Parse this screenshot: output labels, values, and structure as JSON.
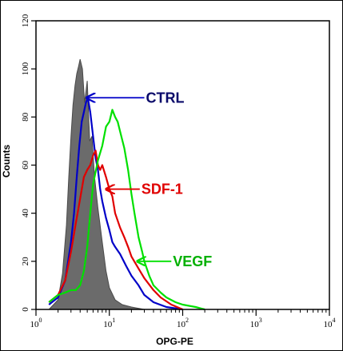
{
  "chart_data": {
    "type": "line",
    "xlabel": "OPG-PE",
    "ylabel": "Counts",
    "x_scale": "log",
    "xlim": [
      1,
      10000
    ],
    "ylim": [
      0,
      120
    ],
    "x_ticks": [
      1,
      10,
      100,
      1000,
      10000
    ],
    "x_tick_labels": [
      {
        "base": "10",
        "exp": "0"
      },
      {
        "base": "10",
        "exp": "1"
      },
      {
        "base": "10",
        "exp": "2"
      },
      {
        "base": "10",
        "exp": "3"
      },
      {
        "base": "10",
        "exp": "4"
      }
    ],
    "y_ticks": [
      0,
      20,
      40,
      60,
      80,
      100,
      120
    ],
    "y_tick_labels": [
      "0",
      "20",
      "40",
      "60",
      "80",
      "100",
      "120"
    ],
    "grid": false,
    "series": [
      {
        "name": "",
        "style": "filled",
        "color": "#6b6b6b",
        "x": [
          1.5,
          2,
          2.3,
          2.6,
          2.8,
          3.0,
          3.2,
          3.4,
          3.6,
          3.8,
          4.0,
          4.3,
          4.6,
          5.0,
          5.4,
          5.8,
          6.3,
          7,
          8,
          9,
          10,
          12,
          15,
          20,
          30,
          60
        ],
        "y": [
          0,
          4,
          15,
          35,
          55,
          72,
          85,
          93,
          98,
          101,
          104,
          100,
          86,
          95,
          70,
          72,
          55,
          42,
          28,
          16,
          9,
          4,
          2,
          1,
          0,
          0
        ]
      },
      {
        "name": "CTRL",
        "color": "#0000c8",
        "x": [
          1.5,
          2,
          2.5,
          3,
          3.3,
          3.6,
          3.9,
          4.2,
          4.5,
          4.8,
          5.1,
          5.5,
          6,
          6.5,
          7,
          7.5,
          8,
          9,
          10,
          11,
          12,
          14,
          17,
          20,
          25,
          30,
          40,
          60,
          100
        ],
        "y": [
          2,
          5,
          12,
          28,
          40,
          55,
          68,
          78,
          82,
          86,
          88,
          82,
          72,
          63,
          58,
          50,
          45,
          38,
          33,
          28,
          26,
          23,
          18,
          14,
          10,
          6,
          3,
          1,
          0
        ]
      },
      {
        "name": "SDF-1",
        "color": "#e00000",
        "x": [
          1.5,
          2,
          2.5,
          3,
          3.5,
          4,
          4.5,
          5,
          5.5,
          6,
          6.5,
          7,
          7.5,
          8,
          9,
          10,
          11,
          12,
          14,
          16,
          18,
          20,
          25,
          30,
          40,
          50,
          70,
          100
        ],
        "y": [
          3,
          6,
          12,
          24,
          36,
          46,
          55,
          58,
          60,
          64,
          66,
          60,
          58,
          60,
          55,
          50,
          47,
          40,
          34,
          30,
          26,
          22,
          17,
          13,
          8,
          5,
          2,
          0
        ]
      },
      {
        "name": "VEGF",
        "color": "#00e000",
        "x": [
          1.5,
          2,
          2.5,
          3,
          3.5,
          4,
          4.5,
          5,
          5.5,
          6,
          7,
          8,
          9,
          10,
          11,
          12,
          13,
          14,
          16,
          18,
          20,
          22,
          25,
          28,
          30,
          35,
          40,
          50,
          60,
          80,
          100,
          150,
          200
        ],
        "y": [
          3,
          6,
          7,
          8,
          8,
          10,
          16,
          26,
          40,
          52,
          62,
          68,
          76,
          78,
          83,
          80,
          78,
          74,
          67,
          58,
          48,
          40,
          30,
          24,
          20,
          14,
          10,
          7,
          5,
          3,
          2,
          1,
          0
        ]
      }
    ],
    "annotations": [
      {
        "text": "CTRL",
        "color": "#0a0a6a",
        "arrow_color": "#0000c8",
        "x_from": 30,
        "y_from": 88,
        "x_to": 4.9,
        "y_to": 88
      },
      {
        "text": "SDF-1",
        "color": "#e00000",
        "arrow_color": "#e00000",
        "x_from": 26,
        "y_from": 50,
        "x_to": 9,
        "y_to": 50
      },
      {
        "text": "VEGF",
        "color": "#00b000",
        "arrow_color": "#00e000",
        "x_from": 70,
        "y_from": 20,
        "x_to": 24,
        "y_to": 20
      }
    ]
  }
}
